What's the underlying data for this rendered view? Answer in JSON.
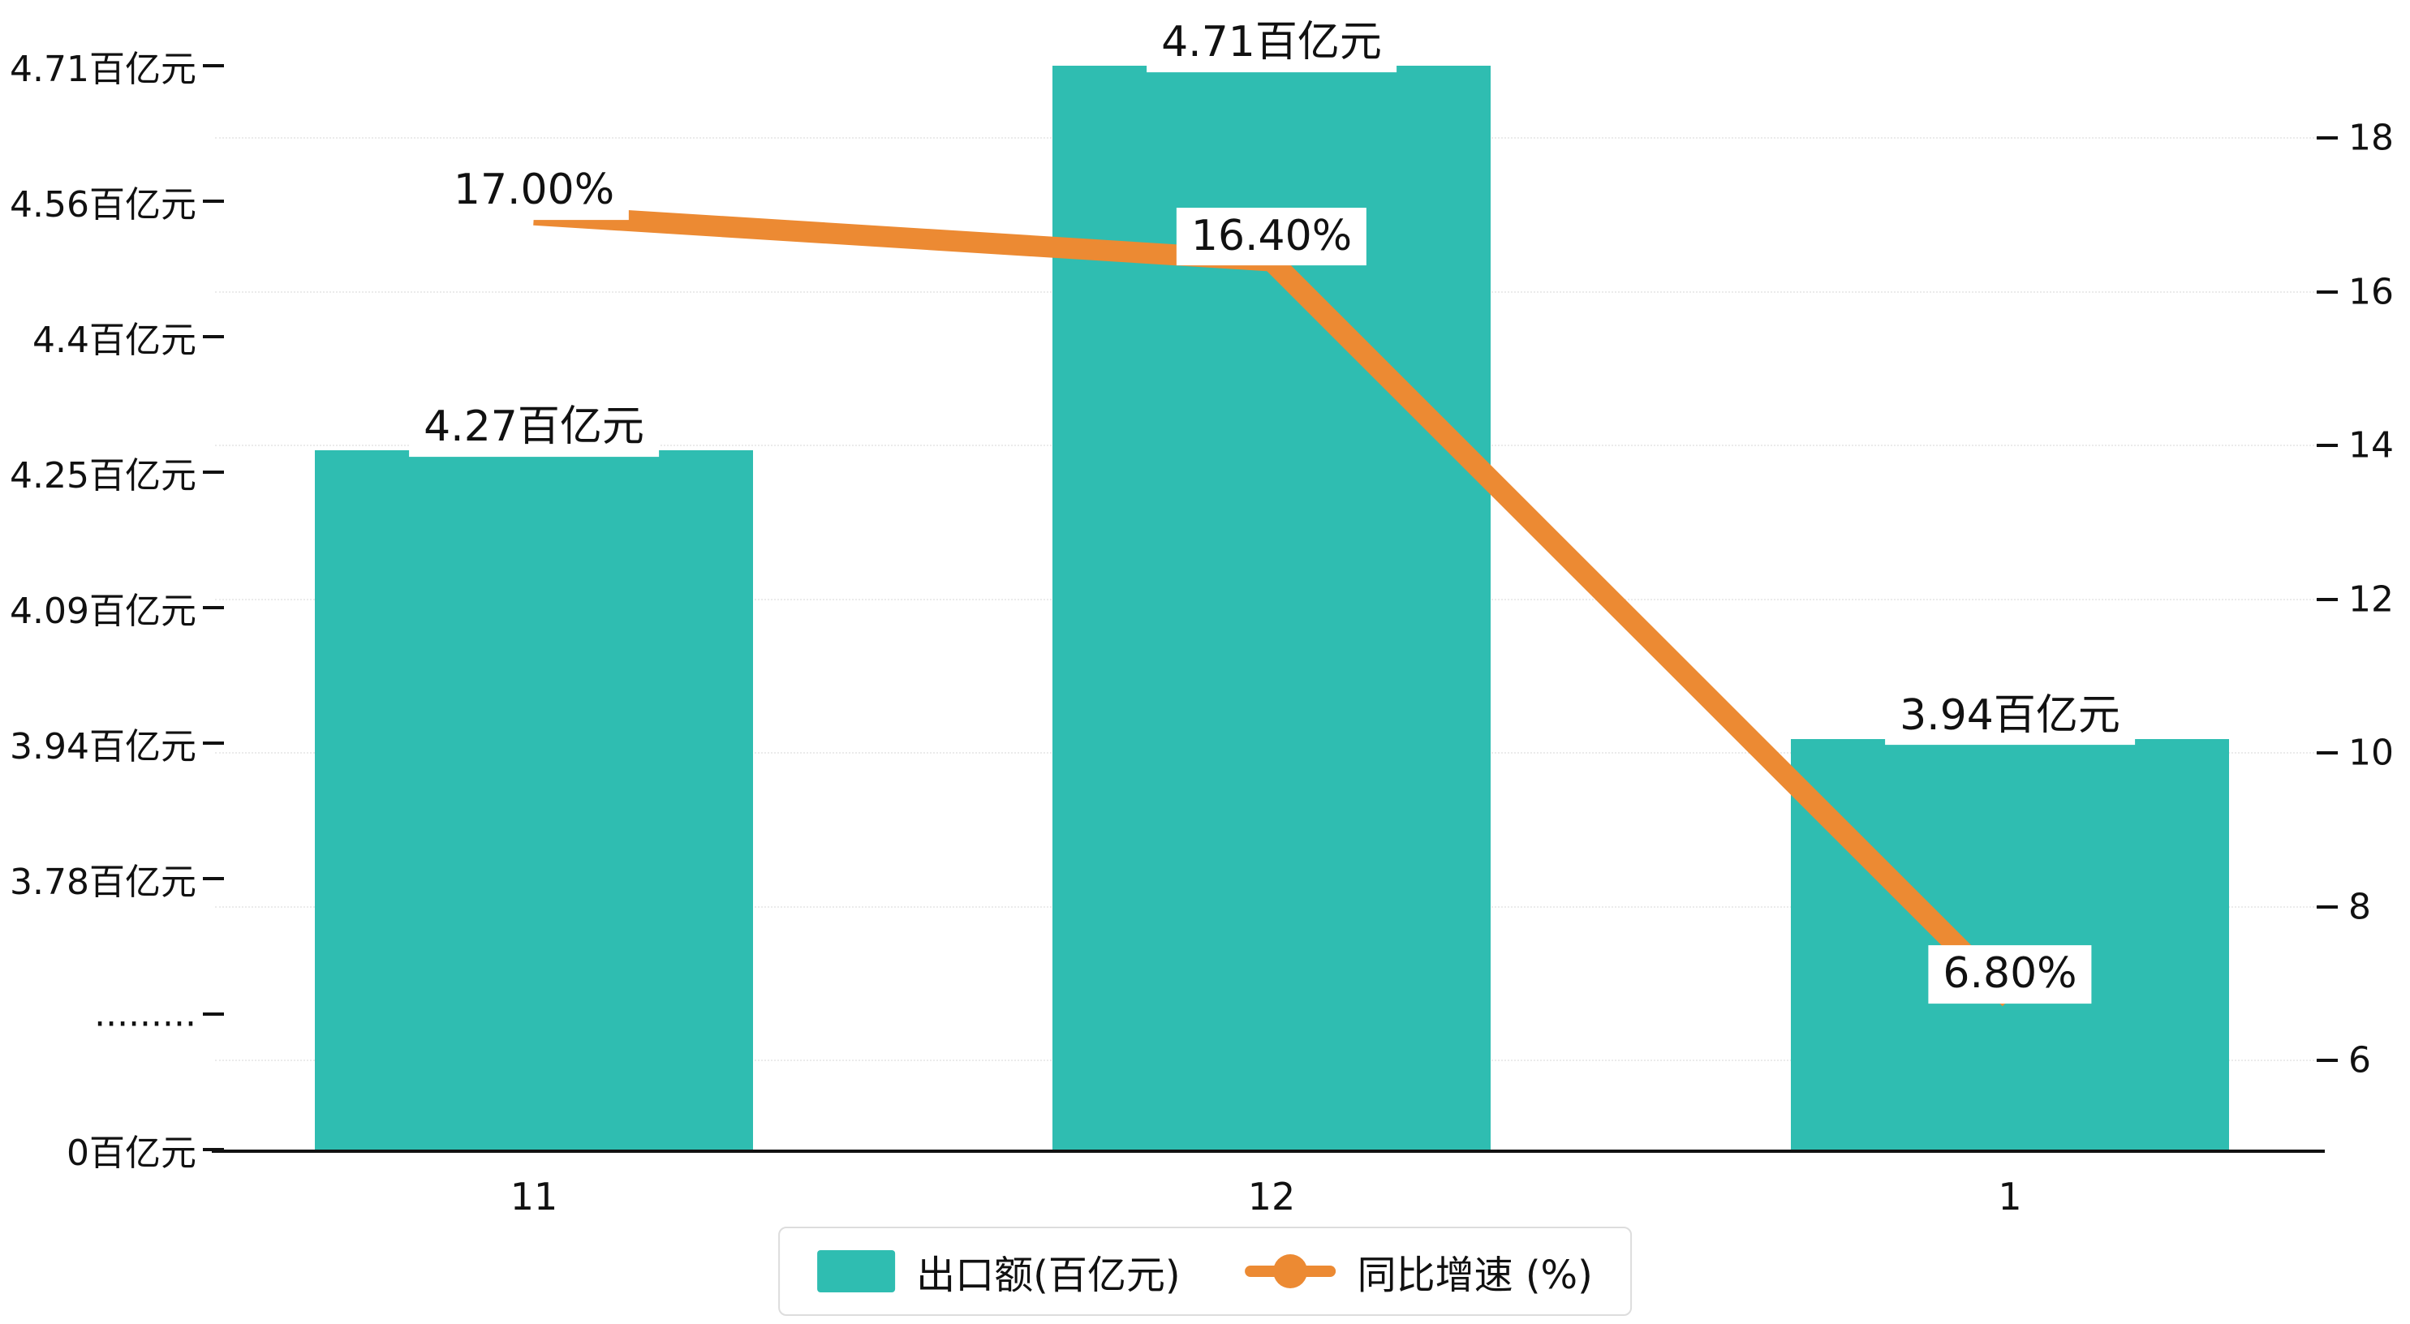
{
  "chart_data": {
    "type": "bar",
    "subtype": "bar+line combo, dual axis, broken left axis",
    "categories": [
      "11",
      "12",
      "1"
    ],
    "series": [
      {
        "name": "出口额(百亿元)",
        "type": "bar",
        "axis": "left",
        "values": [
          4.27,
          4.71,
          3.94
        ],
        "data_labels": [
          "4.27百亿元",
          "4.71百亿元",
          "3.94百亿元"
        ],
        "color": "#2FBDB1"
      },
      {
        "name": "同比增速 (%)",
        "type": "line",
        "axis": "right",
        "values": [
          17.0,
          16.4,
          6.8
        ],
        "data_labels": [
          "17.00%",
          "16.40%",
          "6.80%"
        ],
        "color": "#EC8A33"
      }
    ],
    "left_axis": {
      "tick_labels": [
        "4.71百亿元",
        "4.56百亿元",
        "4.4百亿元",
        "4.25百亿元",
        "4.09百亿元",
        "3.94百亿元",
        "3.78百亿元",
        ".........",
        "0百亿元"
      ],
      "tick_values": [
        4.71,
        4.56,
        4.4,
        4.25,
        4.09,
        3.94,
        3.78,
        null,
        0
      ],
      "has_break": true
    },
    "right_axis": {
      "tick_labels": [
        "18",
        "16",
        "14",
        "12",
        "10",
        "8",
        "6"
      ],
      "tick_values": [
        18,
        16,
        14,
        12,
        10,
        8,
        6
      ]
    },
    "legend": {
      "position": "bottom-center",
      "items": [
        "出口额(百亿元)",
        "同比增速 (%)"
      ]
    },
    "grid": "dotted horizontal",
    "text_color": "#111111",
    "background": "#ffffff"
  }
}
